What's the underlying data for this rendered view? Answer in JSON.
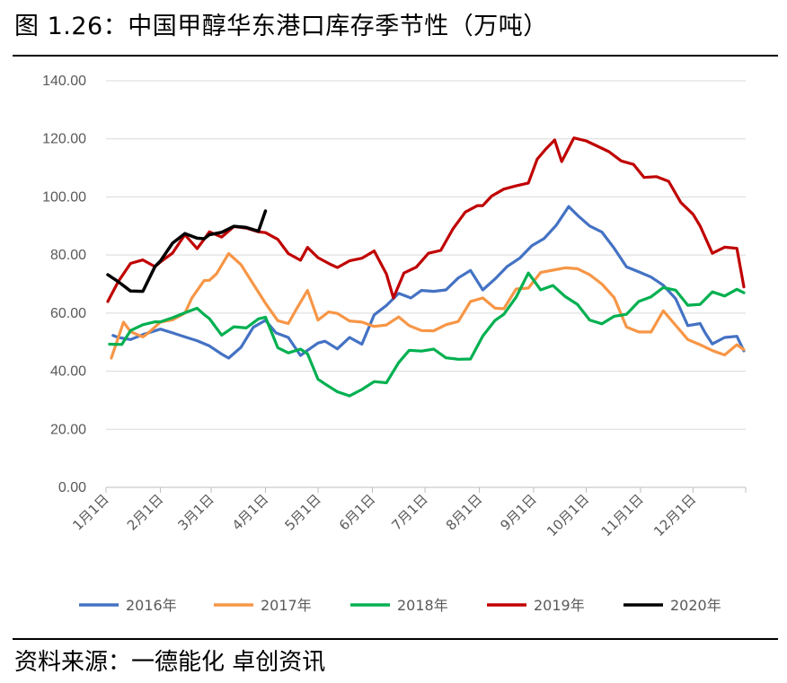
{
  "figure": {
    "title": "图 1.26：中国甲醇华东港口库存季节性（万吨）",
    "source": "资料来源：一德能化  卓创资讯"
  },
  "chart_data": {
    "type": "line",
    "title": "",
    "xlabel": "",
    "ylabel": "",
    "ylim": [
      0,
      140
    ],
    "xlim": [
      0,
      365
    ],
    "x_unit": "day of year",
    "y_ticks": [
      "0.00",
      "20.00",
      "40.00",
      "60.00",
      "80.00",
      "100.00",
      "120.00",
      "140.00"
    ],
    "x_ticks": [
      {
        "label": "1月1日",
        "day": 0
      },
      {
        "label": "2月1日",
        "day": 31
      },
      {
        "label": "3月1日",
        "day": 60
      },
      {
        "label": "4月1日",
        "day": 91
      },
      {
        "label": "5月1日",
        "day": 121
      },
      {
        "label": "6月1日",
        "day": 152
      },
      {
        "label": "7月1日",
        "day": 182
      },
      {
        "label": "8月1日",
        "day": 213
      },
      {
        "label": "9月1日",
        "day": 244
      },
      {
        "label": "10月1日",
        "day": 274
      },
      {
        "label": "11月1日",
        "day": 305
      },
      {
        "label": "12月1日",
        "day": 335
      }
    ],
    "grid": true,
    "legend_position": "bottom",
    "series": [
      {
        "name": "2016年",
        "color": "#4472C4",
        "x": [
          4,
          7,
          14,
          21,
          31,
          38,
          45,
          52,
          59,
          66,
          70,
          77,
          84,
          91,
          97,
          104,
          111,
          115,
          121,
          125,
          132,
          139,
          146,
          153,
          160,
          167,
          174,
          180,
          187,
          194,
          201,
          208,
          215,
          222,
          229,
          236,
          243,
          250,
          257,
          264,
          269,
          276,
          283,
          290,
          297,
          304,
          311,
          318,
          325,
          332,
          339,
          342,
          346,
          353,
          360,
          364
        ],
        "y": [
          52.3,
          51.6,
          50.9,
          52.6,
          54.5,
          53.2,
          51.8,
          50.5,
          48.7,
          45.9,
          44.5,
          48.2,
          55.1,
          57.5,
          53.2,
          51.6,
          45.4,
          47.2,
          49.7,
          50.3,
          47.7,
          51.6,
          49.3,
          59.4,
          62.6,
          66.8,
          65.2,
          67.8,
          67.5,
          68.0,
          72.1,
          74.7,
          68.0,
          71.8,
          76.1,
          78.9,
          83.2,
          85.7,
          90.3,
          96.7,
          93.7,
          90.0,
          87.9,
          82.3,
          75.9,
          74.2,
          72.4,
          69.6,
          65.0,
          55.7,
          56.4,
          53.1,
          49.4,
          51.6,
          52.0,
          47.0
        ]
      },
      {
        "name": "2017年",
        "color": "#F79646",
        "x": [
          3,
          10,
          14,
          21,
          24,
          31,
          38,
          45,
          49,
          56,
          59,
          63,
          70,
          77,
          84,
          91,
          98,
          104,
          108,
          115,
          121,
          127,
          132,
          139,
          146,
          153,
          160,
          167,
          173,
          180,
          187,
          194,
          201,
          208,
          215,
          222,
          227,
          234,
          241,
          248,
          255,
          262,
          269,
          276,
          283,
          290,
          297,
          304,
          311,
          318,
          325,
          332,
          339,
          346,
          353,
          360,
          364
        ],
        "y": [
          44.5,
          56.9,
          53.6,
          51.8,
          53.1,
          56.9,
          57.7,
          60.0,
          65.2,
          71.2,
          71.3,
          73.5,
          80.5,
          76.7,
          70.0,
          63.4,
          57.4,
          56.4,
          60.7,
          67.8,
          57.6,
          60.4,
          59.9,
          57.3,
          56.9,
          55.4,
          55.9,
          58.7,
          55.7,
          54.0,
          53.9,
          56.0,
          57.1,
          64.0,
          65.2,
          61.7,
          61.5,
          68.3,
          68.6,
          74.0,
          74.8,
          75.6,
          75.3,
          73.2,
          70.0,
          65.3,
          55.2,
          53.5,
          53.5,
          60.8,
          55.8,
          50.9,
          49.1,
          47.1,
          45.6,
          49.1,
          47.4
        ]
      },
      {
        "name": "2018年",
        "color": "#00B050",
        "x": [
          2,
          9,
          14,
          21,
          28,
          31,
          38,
          45,
          52,
          56,
          59,
          66,
          73,
          80,
          87,
          91,
          98,
          104,
          111,
          115,
          121,
          125,
          132,
          139,
          146,
          153,
          160,
          167,
          173,
          180,
          187,
          194,
          201,
          208,
          215,
          222,
          227,
          234,
          241,
          248,
          255,
          262,
          269,
          276,
          283,
          290,
          297,
          304,
          311,
          318,
          325,
          332,
          339,
          346,
          353,
          360,
          364
        ],
        "y": [
          49.3,
          49.2,
          54.0,
          56.0,
          57.0,
          57.0,
          58.4,
          60.1,
          61.7,
          59.5,
          58.1,
          52.4,
          55.3,
          54.9,
          58.0,
          58.6,
          48.1,
          46.3,
          47.6,
          46.0,
          37.2,
          35.6,
          32.9,
          31.5,
          33.7,
          36.4,
          36.0,
          43.0,
          47.2,
          46.9,
          47.6,
          44.6,
          44.1,
          44.2,
          52.1,
          57.5,
          59.6,
          65.5,
          73.8,
          68.0,
          69.5,
          65.7,
          63.0,
          57.6,
          56.3,
          58.9,
          59.6,
          64.0,
          65.6,
          68.8,
          67.9,
          62.7,
          63.0,
          67.3,
          65.9,
          68.2,
          67.0
        ]
      },
      {
        "name": "2019年",
        "color": "#C00000",
        "x": [
          1,
          7,
          14,
          21,
          28,
          31,
          38,
          45,
          52,
          56,
          59,
          66,
          73,
          80,
          87,
          91,
          98,
          104,
          111,
          115,
          121,
          128,
          132,
          139,
          146,
          153,
          160,
          164,
          170,
          177,
          184,
          191,
          198,
          205,
          212,
          215,
          220,
          227,
          234,
          241,
          246,
          251,
          256,
          260,
          267,
          274,
          280,
          287,
          294,
          301,
          307,
          314,
          321,
          328,
          335,
          339,
          346,
          353,
          360,
          364
        ],
        "y": [
          64.0,
          70.9,
          77.1,
          78.3,
          76.0,
          77.6,
          80.7,
          87.0,
          82.2,
          85.4,
          88.0,
          86.2,
          89.8,
          89.3,
          88.0,
          87.7,
          85.4,
          80.5,
          78.2,
          82.6,
          79.1,
          76.8,
          75.7,
          78.0,
          78.9,
          81.4,
          73.5,
          65.2,
          73.8,
          75.8,
          80.6,
          81.6,
          89.0,
          94.8,
          97.0,
          97.0,
          100.3,
          102.7,
          103.8,
          104.8,
          113.0,
          116.5,
          119.6,
          112.2,
          120.3,
          119.3,
          117.6,
          115.6,
          112.4,
          111.2,
          106.7,
          107.0,
          105.4,
          98.1,
          94.0,
          90.0,
          80.6,
          82.7,
          82.3,
          69.0
        ]
      },
      {
        "name": "2020年",
        "color": "#000000",
        "x": [
          1,
          7,
          14,
          21,
          28,
          31,
          38,
          45,
          52,
          56,
          59,
          66,
          73,
          80,
          87,
          91
        ],
        "y": [
          73.2,
          70.8,
          67.6,
          67.5,
          76.1,
          77.9,
          84.1,
          87.4,
          85.8,
          85.6,
          87.0,
          87.8,
          89.9,
          89.5,
          88.2,
          95.2
        ]
      }
    ]
  }
}
